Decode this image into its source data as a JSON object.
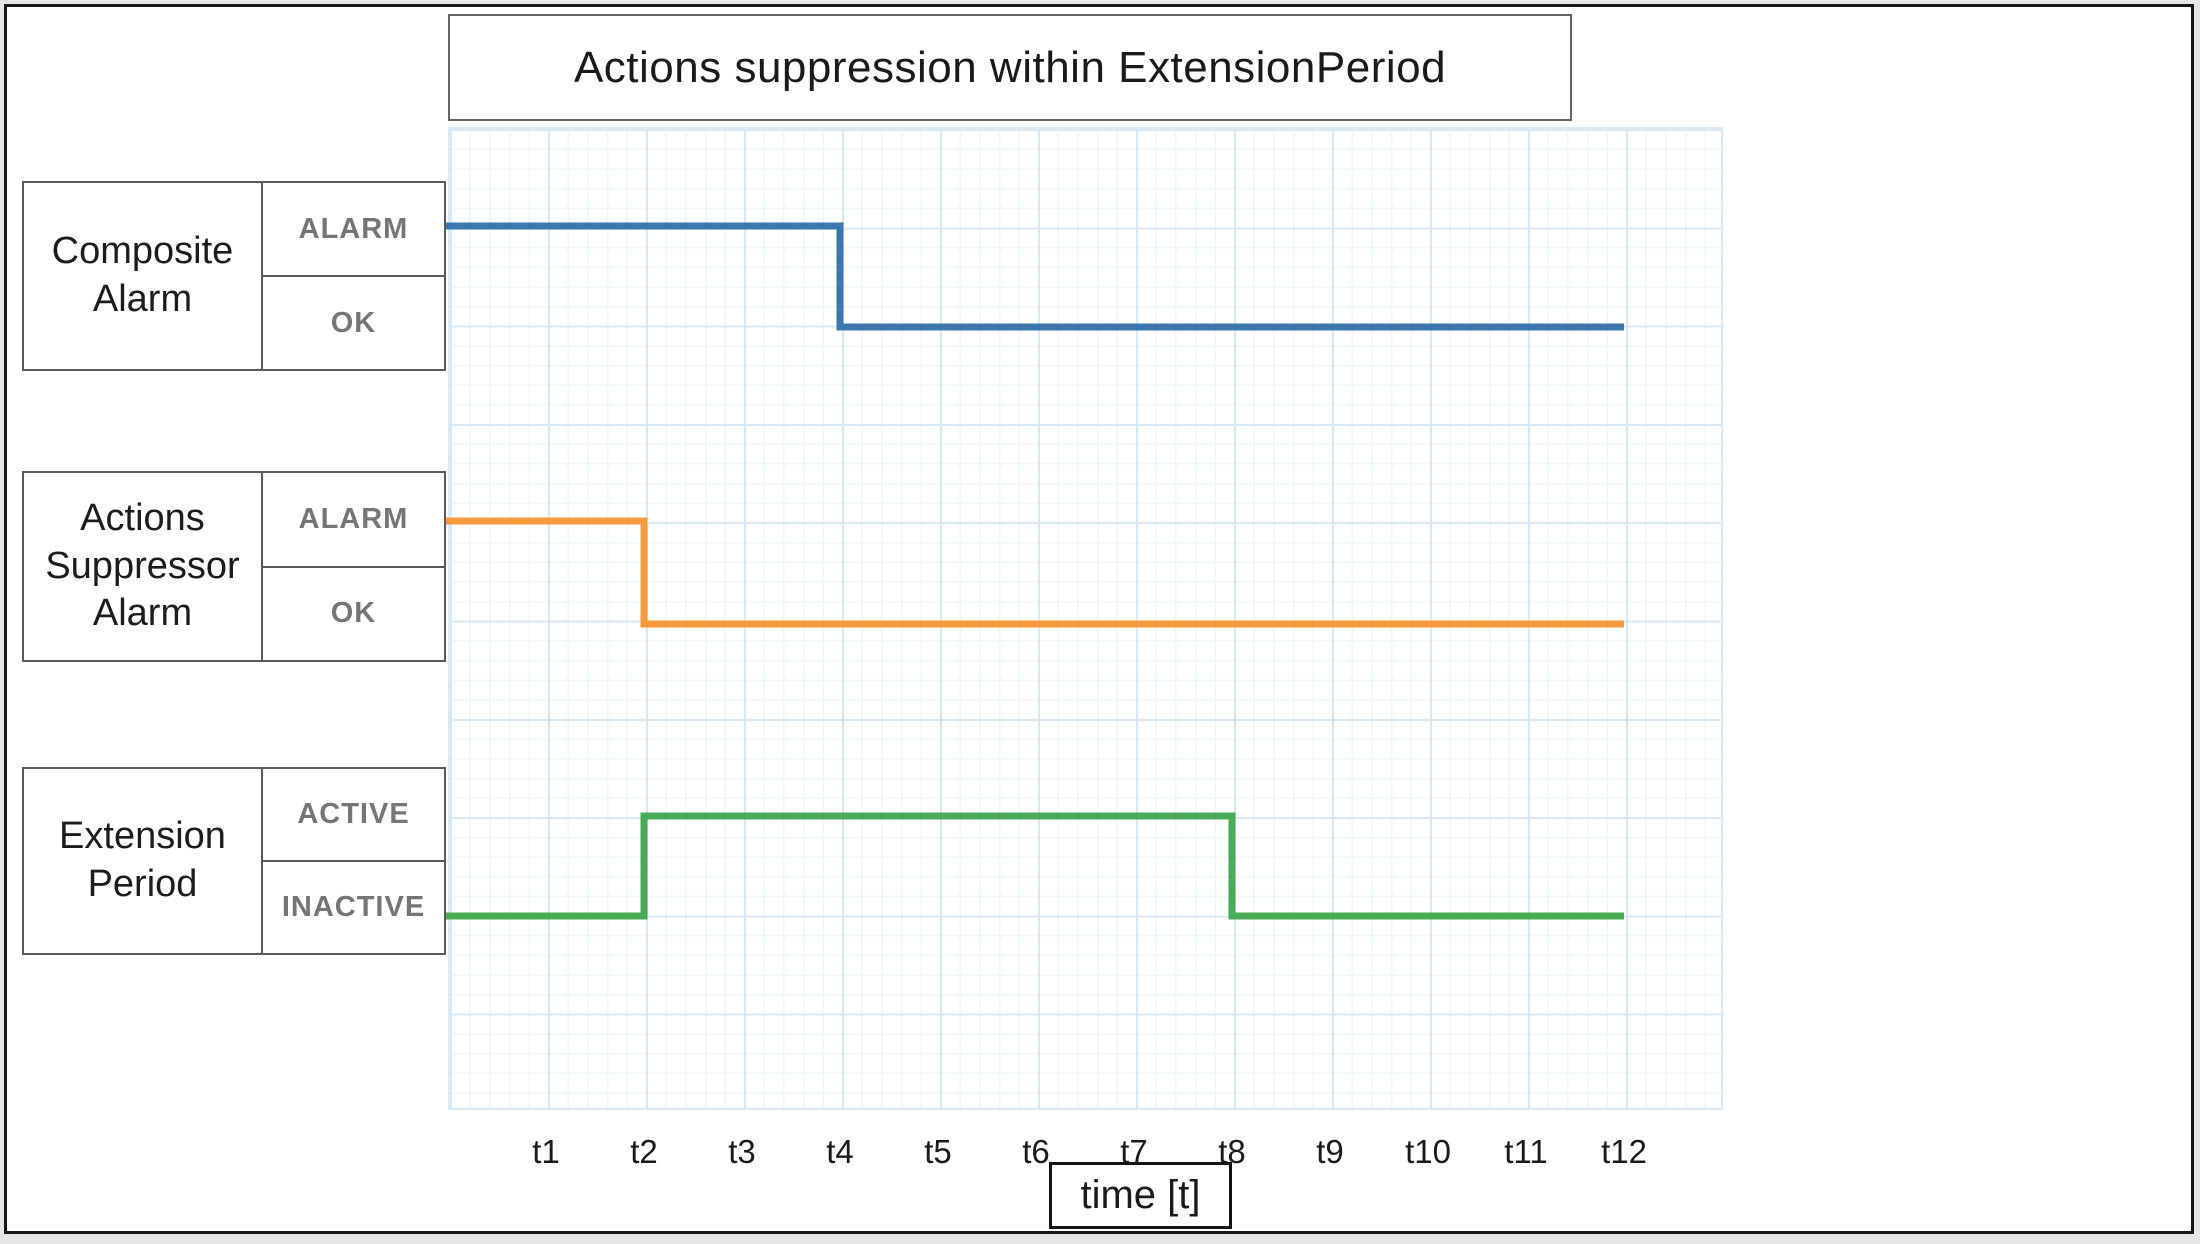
{
  "title": "Actions suppression within ExtensionPeriod",
  "rows": [
    {
      "id": "composite-alarm",
      "label": "Composite\nAlarm",
      "states": [
        "ALARM",
        "OK"
      ]
    },
    {
      "id": "actions-suppressor-alarm",
      "label": "Actions\nSuppressor\nAlarm",
      "states": [
        "ALARM",
        "OK"
      ]
    },
    {
      "id": "extension-period",
      "label": "Extension\nPeriod",
      "states": [
        "ACTIVE",
        "INACTIVE"
      ]
    }
  ],
  "axis": {
    "ticks": [
      "t1",
      "t2",
      "t3",
      "t4",
      "t5",
      "t6",
      "t7",
      "t8",
      "t9",
      "t10",
      "t11",
      "t12"
    ],
    "label": "time [t]"
  },
  "colors": {
    "composite_alarm_line": "#3b76af",
    "actions_suppressor_line": "#f79a3c",
    "extension_period_line": "#4aab57",
    "grid_minor": "#eef5fb",
    "grid_major": "#d8e7f4",
    "state_text": "#757575",
    "box_border": "#5a5a5a"
  },
  "chart_data": {
    "type": "line",
    "subtype": "step-timing-diagram",
    "title": "Actions suppression within ExtensionPeriod",
    "xlabel": "time [t]",
    "x_unit": "t",
    "x_range": [
      0,
      12
    ],
    "grid": true,
    "series": [
      {
        "id": "composite-alarm",
        "name": "Composite Alarm",
        "color": "#3b76af",
        "levels": [
          "ALARM",
          "OK"
        ],
        "steps": [
          {
            "t": 0,
            "state": "ALARM"
          },
          {
            "t": 4,
            "state": "OK"
          }
        ],
        "end_t": 12
      },
      {
        "id": "actions-suppressor-alarm",
        "name": "Actions Suppressor Alarm",
        "color": "#f79a3c",
        "levels": [
          "ALARM",
          "OK"
        ],
        "steps": [
          {
            "t": 0,
            "state": "ALARM"
          },
          {
            "t": 2,
            "state": "OK"
          }
        ],
        "end_t": 12
      },
      {
        "id": "extension-period",
        "name": "Extension Period",
        "color": "#4aab57",
        "levels": [
          "ACTIVE",
          "INACTIVE"
        ],
        "steps": [
          {
            "t": 0,
            "state": "INACTIVE"
          },
          {
            "t": 2,
            "state": "ACTIVE"
          },
          {
            "t": 8,
            "state": "INACTIVE"
          }
        ],
        "end_t": 12
      }
    ]
  }
}
